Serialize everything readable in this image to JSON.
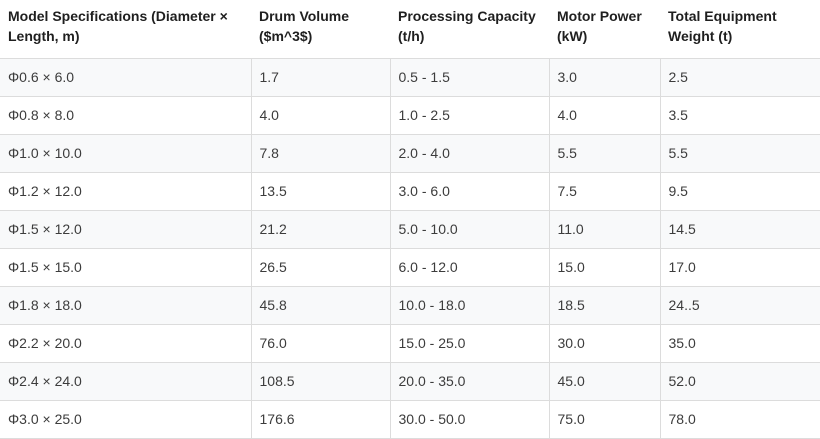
{
  "table": {
    "headers": [
      "Model Specifications (Diameter × Length, m)",
      "Drum Volume ($m^3$)",
      "Processing Capacity (t/h)",
      "Motor Power (kW)",
      "Total Equipment Weight (t)"
    ],
    "rows": [
      [
        "Φ0.6 × 6.0",
        "1.7",
        "0.5 - 1.5",
        "3.0",
        "2.5"
      ],
      [
        "Φ0.8 × 8.0",
        "4.0",
        "1.0 - 2.5",
        "4.0",
        "3.5"
      ],
      [
        "Φ1.0 × 10.0",
        "7.8",
        "2.0 - 4.0",
        "5.5",
        "5.5"
      ],
      [
        "Φ1.2 × 12.0",
        "13.5",
        "3.0 - 6.0",
        "7.5",
        "9.5"
      ],
      [
        "Φ1.5 × 12.0",
        "21.2",
        "5.0 - 10.0",
        "11.0",
        "14.5"
      ],
      [
        "Φ1.5 × 15.0",
        "26.5",
        "6.0 - 12.0",
        "15.0",
        "17.0"
      ],
      [
        "Φ1.8 × 18.0",
        "45.8",
        "10.0 - 18.0",
        "18.5",
        "24..5"
      ],
      [
        "Φ2.2 × 20.0",
        "76.0",
        "15.0 - 25.0",
        "30.0",
        "35.0"
      ],
      [
        "Φ2.4 × 24.0",
        "108.5",
        "20.0 - 35.0",
        "45.0",
        "52.0"
      ],
      [
        "Φ3.0 × 25.0",
        "176.6",
        "30.0 - 50.0",
        "75.0",
        "78.0"
      ]
    ]
  }
}
